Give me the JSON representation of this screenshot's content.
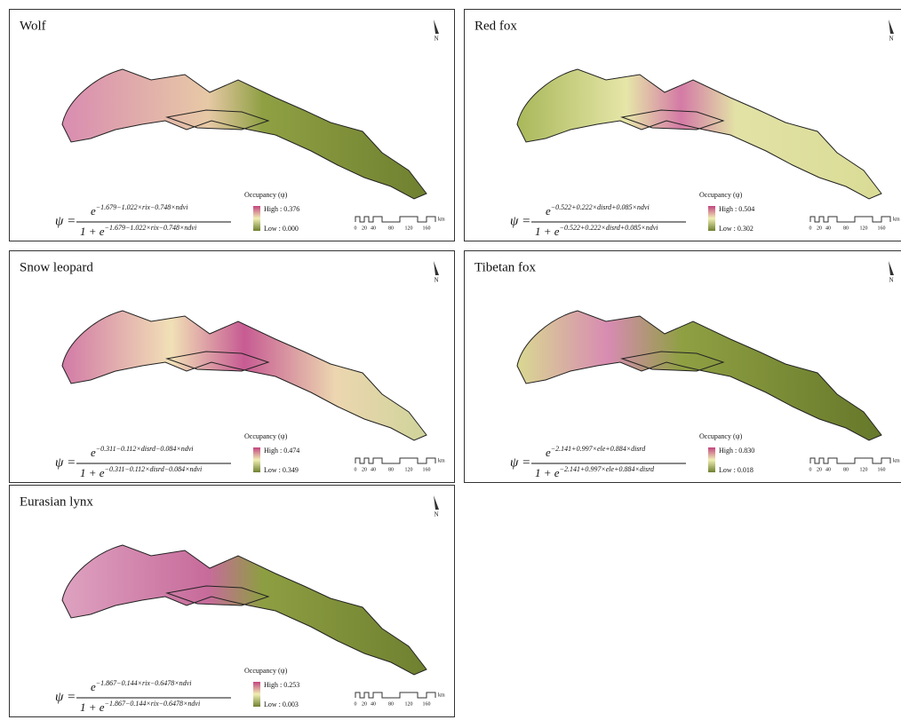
{
  "panels": [
    {
      "title": "Wolf",
      "north": "N",
      "psi": "ψ =",
      "base": "e",
      "denominator_prefix": "1 + e",
      "exponent": "−1.679−1.022×rix−0.748×ndvi",
      "legend_title": "Occupancy (ψ)",
      "high": "High : 0.376",
      "low": "Low : 0.000",
      "scale_labels": [
        "0",
        "20",
        "40",
        "80",
        "120",
        "160"
      ],
      "scale_unit": "km"
    },
    {
      "title": "Red fox",
      "north": "N",
      "psi": "ψ =",
      "base": "e",
      "denominator_prefix": "1 + e",
      "exponent": "−0.522+0.222×disrd+0.085×ndvi",
      "legend_title": "Occupancy (ψ)",
      "high": "High : 0.504",
      "low": "Low : 0.302",
      "scale_labels": [
        "0",
        "20",
        "40",
        "80",
        "120",
        "160"
      ],
      "scale_unit": "km"
    },
    {
      "title": "Snow leopard",
      "north": "N",
      "psi": "ψ =",
      "base": "e",
      "denominator_prefix": "1 + e",
      "exponent": "−0.311−0.112×disrd−0.084×ndvi",
      "legend_title": "Occupancy (ψ)",
      "high": "High : 0.474",
      "low": "Low : 0.349",
      "scale_labels": [
        "0",
        "20",
        "40",
        "80",
        "120",
        "160"
      ],
      "scale_unit": "km"
    },
    {
      "title": "Tibetan fox",
      "north": "N",
      "psi": "ψ =",
      "base": "e",
      "denominator_prefix": "1 + e",
      "exponent": "−2.141+0.997×ele+0.884×disrd",
      "legend_title": "Occupancy (ψ)",
      "high": "High : 0.830",
      "low": "Low : 0.018",
      "scale_labels": [
        "0",
        "20",
        "40",
        "80",
        "120",
        "160"
      ],
      "scale_unit": "km"
    },
    {
      "title": "Eurasian lynx",
      "north": "N",
      "psi": "ψ =",
      "base": "e",
      "denominator_prefix": "1 + e",
      "exponent": "−1.867−0.144×rix−0.6478×ndvi",
      "legend_title": "Occupancy (ψ)",
      "high": "High : 0.253",
      "low": "Low : 0.003",
      "scale_labels": [
        "0",
        "20",
        "40",
        "80",
        "120",
        "160"
      ],
      "scale_unit": "km"
    }
  ]
}
